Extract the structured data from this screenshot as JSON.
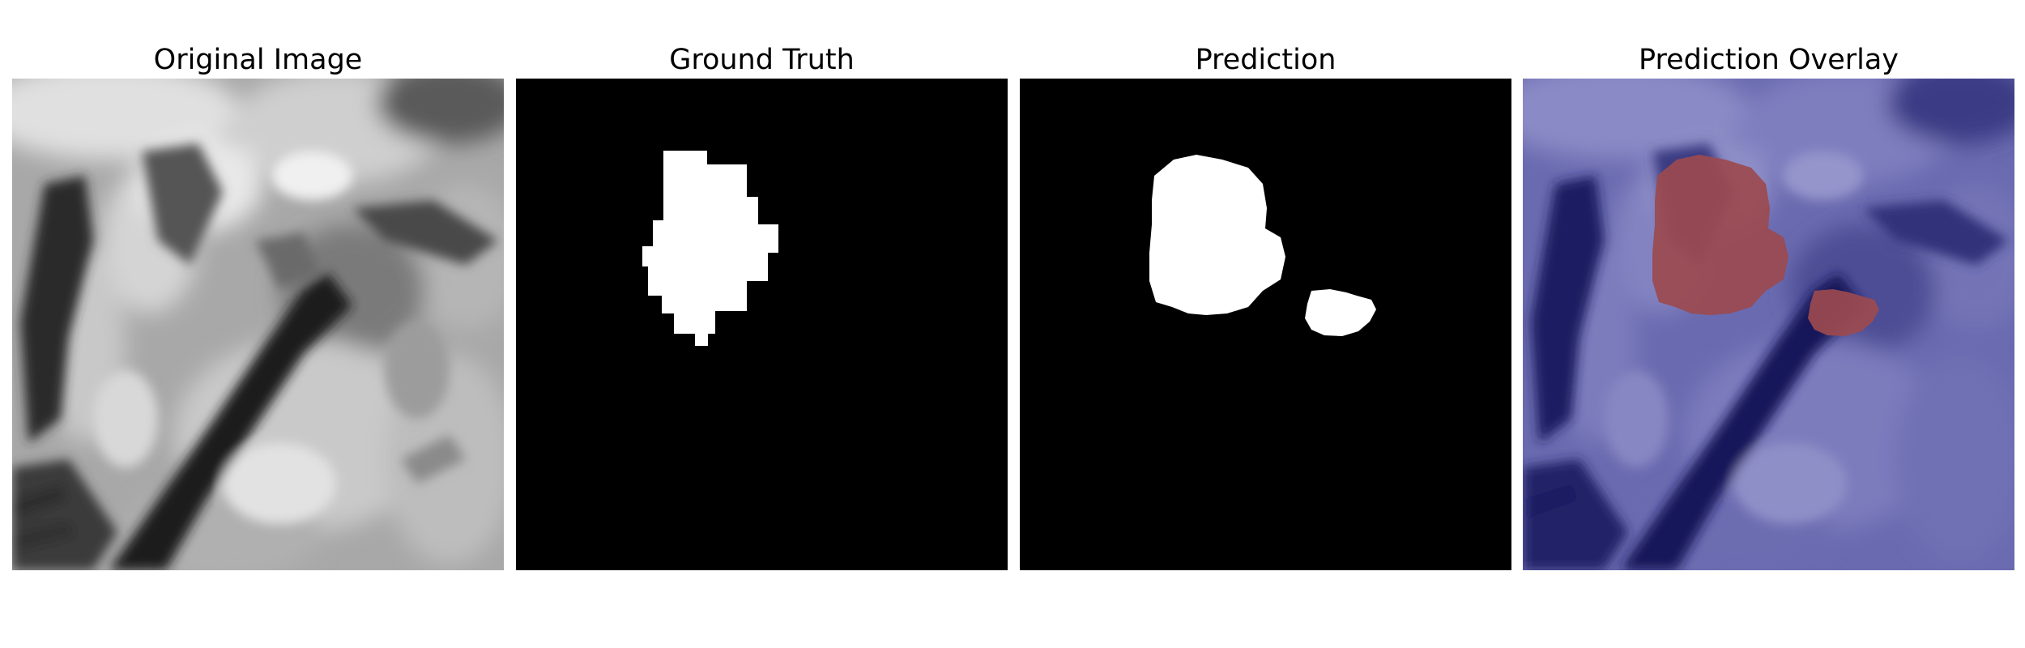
{
  "panels": [
    {
      "title": "Original Image"
    },
    {
      "title": "Ground Truth"
    },
    {
      "title": "Prediction"
    },
    {
      "title": "Prediction Overlay"
    }
  ],
  "colors": {
    "background": "#ffffff",
    "mask_background": "#000000",
    "mask_foreground": "#ffffff",
    "overlay_tint": "#3a3f9e",
    "overlay_prediction": "#9b4a4f"
  }
}
